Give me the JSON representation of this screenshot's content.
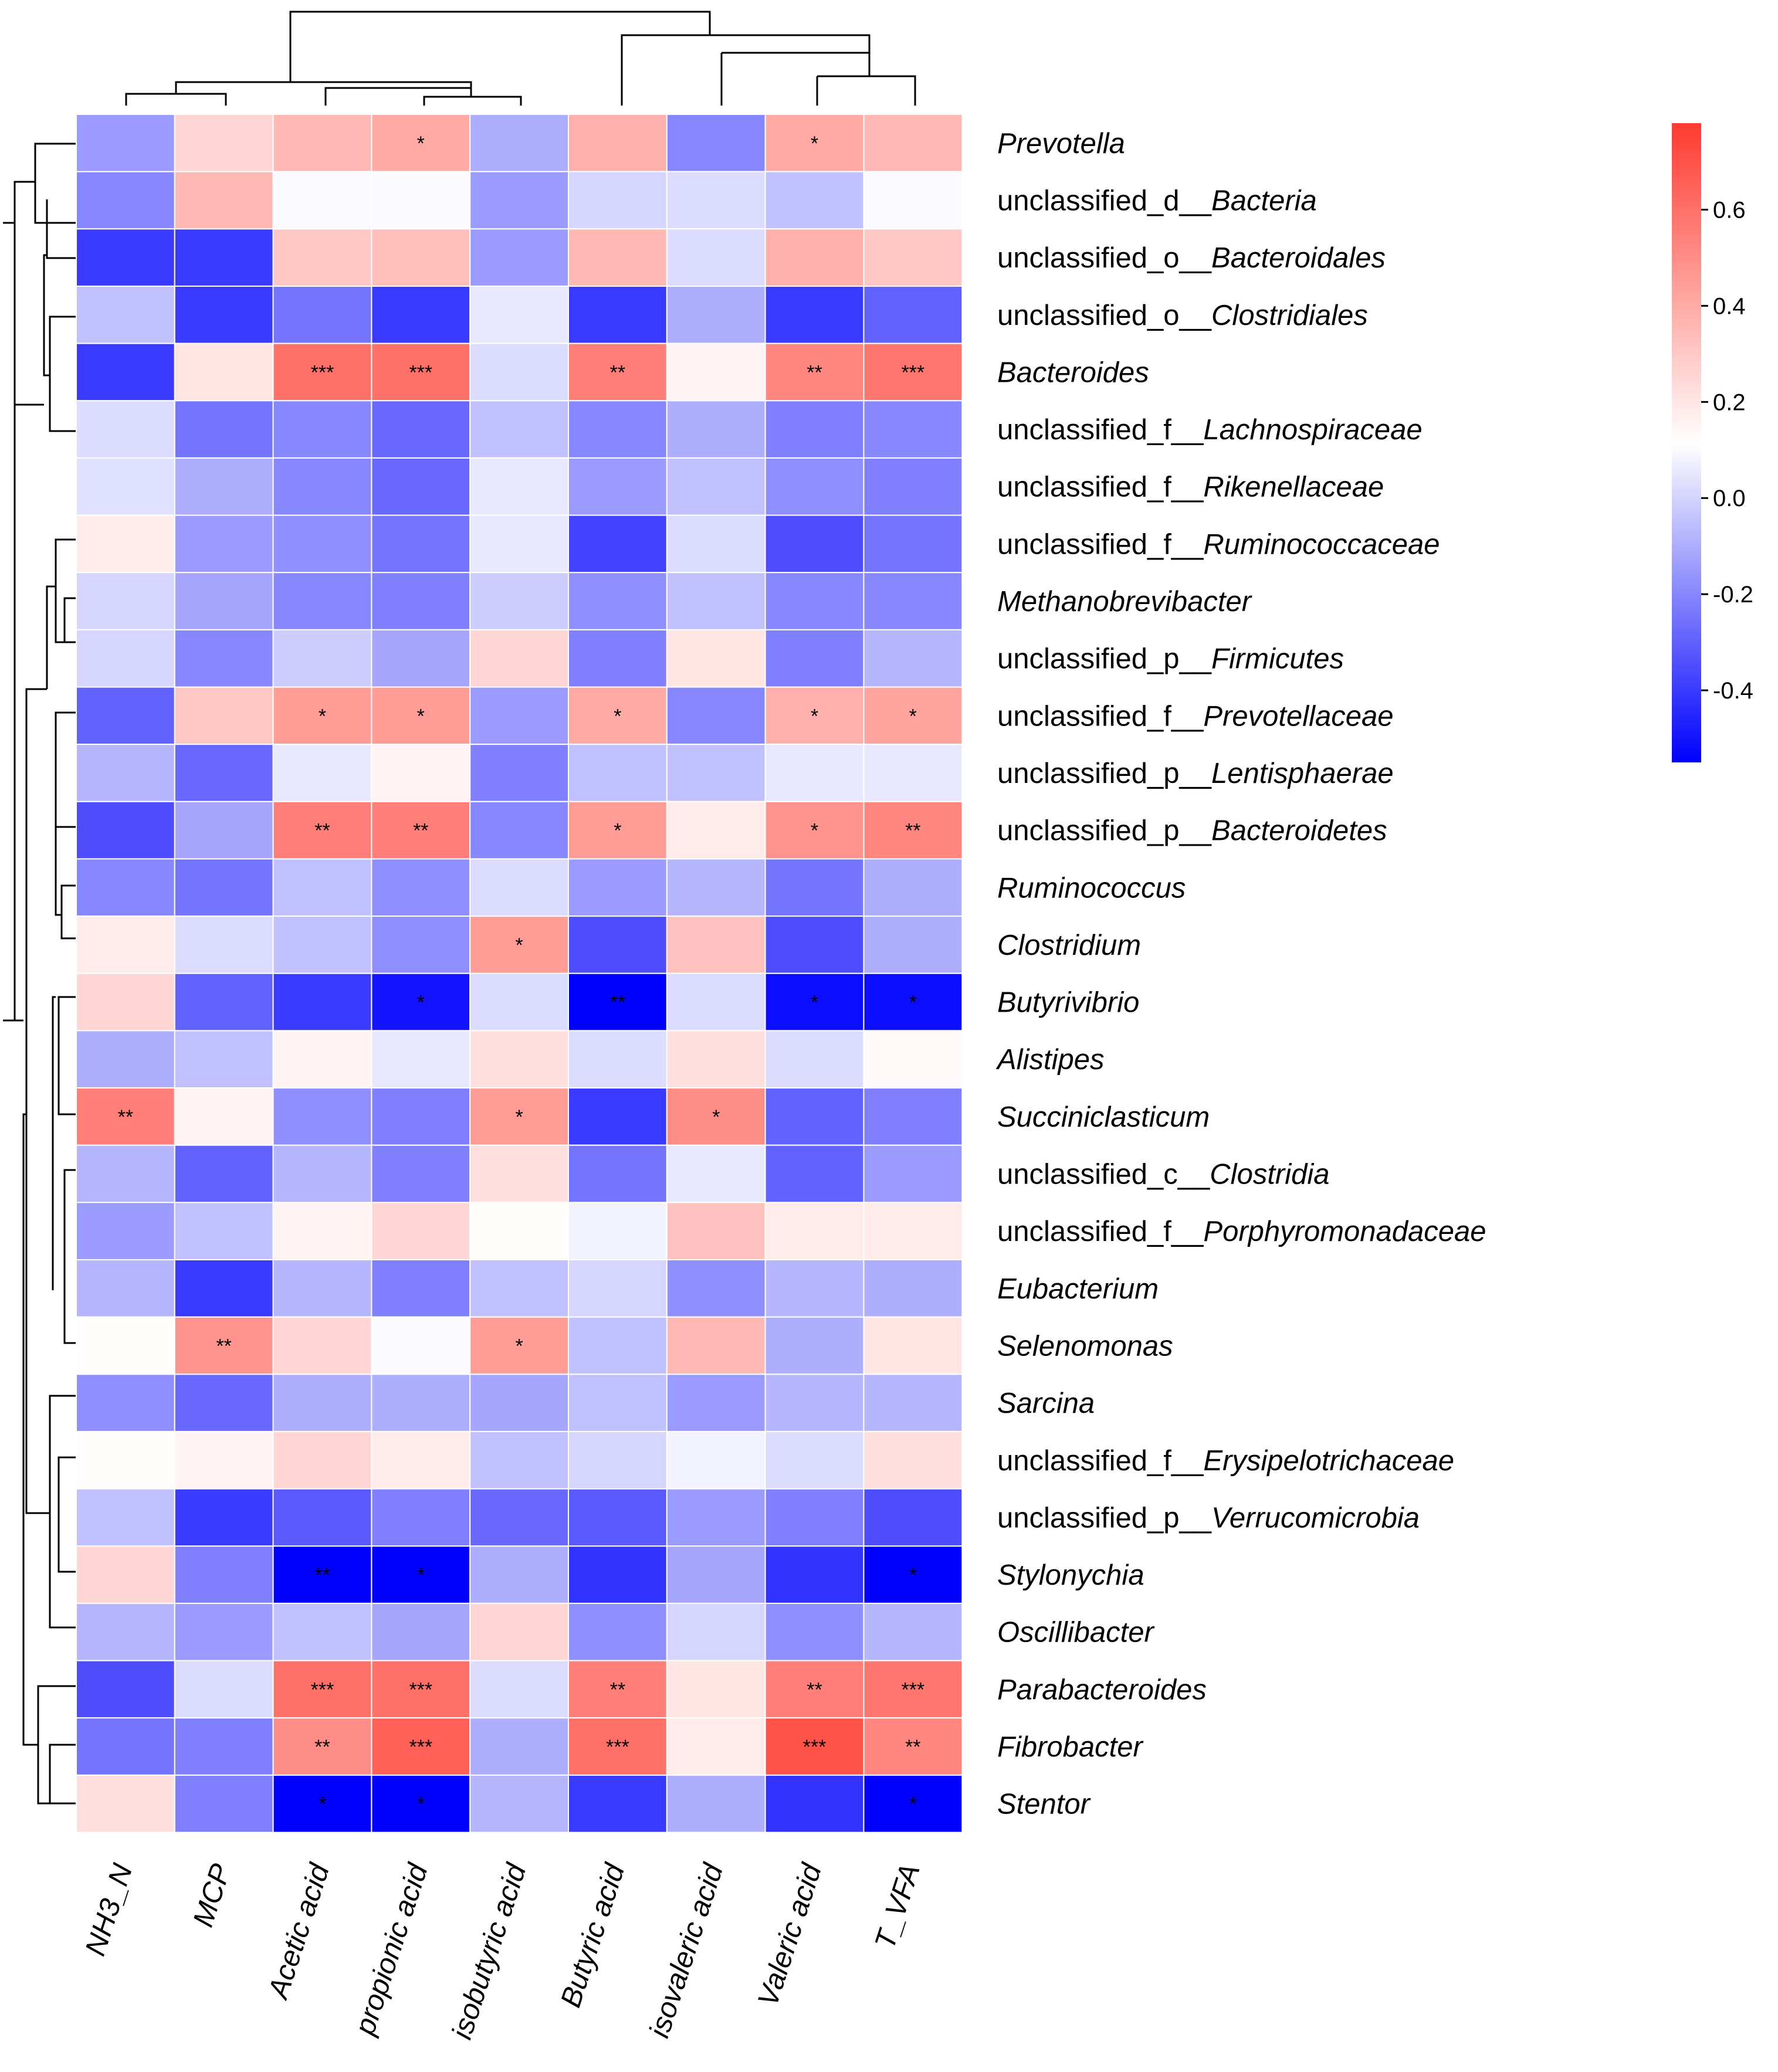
{
  "chart_data": {
    "type": "heatmap",
    "title": "",
    "columns": [
      "NH3_N",
      "MCP",
      "Acetic acid",
      "propionic acid",
      "isobutyric acid",
      "Butyric acid",
      "isovaleric acid",
      "Valeric acid",
      "T_VFA"
    ],
    "rows": [
      {
        "prefix": "",
        "genus": "Prevotella"
      },
      {
        "prefix": "unclassified_d__",
        "genus": "Bacteria"
      },
      {
        "prefix": "unclassified_o__",
        "genus": "Bacteroidales"
      },
      {
        "prefix": "unclassified_o__",
        "genus": "Clostridiales"
      },
      {
        "prefix": "",
        "genus": "Bacteroides"
      },
      {
        "prefix": "unclassified_f__",
        "genus": "Lachnospiraceae"
      },
      {
        "prefix": "unclassified_f__",
        "genus": "Rikenellaceae"
      },
      {
        "prefix": "unclassified_f__",
        "genus": "Ruminococcaceae"
      },
      {
        "prefix": "",
        "genus": "Methanobrevibacter"
      },
      {
        "prefix": "unclassified_p__",
        "genus": "Firmicutes"
      },
      {
        "prefix": "unclassified_f__",
        "genus": "Prevotellaceae"
      },
      {
        "prefix": "unclassified_p__",
        "genus": "Lentisphaerae"
      },
      {
        "prefix": "unclassified_p__",
        "genus": "Bacteroidetes"
      },
      {
        "prefix": "",
        "genus": "Ruminococcus"
      },
      {
        "prefix": "",
        "genus": "Clostridium"
      },
      {
        "prefix": "",
        "genus": "Butyrivibrio"
      },
      {
        "prefix": "",
        "genus": "Alistipes"
      },
      {
        "prefix": "",
        "genus": "Succiniclasticum"
      },
      {
        "prefix": "unclassified_c__",
        "genus": "Clostridia"
      },
      {
        "prefix": "unclassified_f__",
        "genus": "Porphyromonadaceae"
      },
      {
        "prefix": "",
        "genus": "Eubacterium"
      },
      {
        "prefix": "",
        "genus": "Selenomonas"
      },
      {
        "prefix": "",
        "genus": "Sarcina"
      },
      {
        "prefix": "unclassified_f__",
        "genus": "Erysipelotrichaceae"
      },
      {
        "prefix": "unclassified_p__",
        "genus": "Verrucomicrobia"
      },
      {
        "prefix": "",
        "genus": "Stylonychia"
      },
      {
        "prefix": "",
        "genus": "Oscillibacter"
      },
      {
        "prefix": "",
        "genus": "Parabacteroides"
      },
      {
        "prefix": "",
        "genus": "Fibrobacter"
      },
      {
        "prefix": "",
        "genus": "Stentor"
      }
    ],
    "values": [
      [
        -0.15,
        0.25,
        0.35,
        0.4,
        -0.1,
        0.38,
        -0.2,
        0.4,
        0.35
      ],
      [
        -0.2,
        0.35,
        0.1,
        0.1,
        -0.15,
        0.0,
        0.02,
        -0.05,
        0.1
      ],
      [
        -0.4,
        -0.4,
        0.3,
        0.33,
        -0.15,
        0.35,
        0.02,
        0.38,
        0.3
      ],
      [
        -0.05,
        -0.4,
        -0.25,
        -0.4,
        0.05,
        -0.4,
        -0.1,
        -0.4,
        -0.3
      ],
      [
        -0.4,
        0.2,
        0.6,
        0.6,
        0.02,
        0.55,
        0.15,
        0.52,
        0.58
      ],
      [
        0.02,
        -0.25,
        -0.2,
        -0.28,
        -0.05,
        -0.2,
        -0.1,
        -0.22,
        -0.2
      ],
      [
        0.03,
        -0.1,
        -0.2,
        -0.28,
        0.05,
        -0.15,
        -0.05,
        -0.18,
        -0.22
      ],
      [
        0.18,
        -0.15,
        -0.18,
        -0.25,
        0.05,
        -0.38,
        0.02,
        -0.35,
        -0.25
      ],
      [
        0.0,
        -0.12,
        -0.2,
        -0.22,
        -0.02,
        -0.18,
        -0.05,
        -0.2,
        -0.2
      ],
      [
        0.0,
        -0.2,
        -0.02,
        -0.12,
        0.25,
        -0.22,
        0.2,
        -0.22,
        -0.08
      ],
      [
        -0.3,
        0.3,
        0.45,
        0.45,
        -0.15,
        0.4,
        -0.2,
        0.38,
        0.42
      ],
      [
        -0.08,
        -0.28,
        0.05,
        0.15,
        -0.22,
        -0.05,
        -0.05,
        0.05,
        0.05
      ],
      [
        -0.35,
        -0.12,
        0.55,
        0.55,
        -0.2,
        0.45,
        0.18,
        0.48,
        0.52
      ],
      [
        -0.2,
        -0.25,
        -0.05,
        -0.18,
        0.02,
        -0.15,
        -0.08,
        -0.25,
        -0.1
      ],
      [
        0.18,
        0.02,
        -0.05,
        -0.18,
        0.45,
        -0.35,
        0.32,
        -0.35,
        -0.1
      ],
      [
        0.25,
        -0.3,
        -0.4,
        -0.5,
        0.02,
        -0.55,
        0.02,
        -0.52,
        -0.52
      ],
      [
        -0.1,
        -0.05,
        0.15,
        0.05,
        0.22,
        0.02,
        0.22,
        0.02,
        0.13
      ],
      [
        0.55,
        0.15,
        -0.18,
        -0.22,
        0.45,
        -0.4,
        0.5,
        -0.3,
        -0.22
      ],
      [
        -0.08,
        -0.3,
        -0.08,
        -0.22,
        0.22,
        -0.25,
        0.05,
        -0.3,
        -0.15
      ],
      [
        -0.15,
        -0.05,
        0.15,
        0.25,
        0.12,
        0.08,
        0.32,
        0.18,
        0.18
      ],
      [
        -0.08,
        -0.4,
        -0.08,
        -0.22,
        -0.05,
        0.0,
        -0.18,
        -0.08,
        -0.1
      ],
      [
        0.12,
        0.48,
        0.25,
        0.1,
        0.45,
        -0.05,
        0.35,
        -0.1,
        0.2
      ],
      [
        -0.18,
        -0.28,
        -0.1,
        -0.1,
        -0.12,
        -0.05,
        -0.15,
        -0.08,
        -0.08
      ],
      [
        0.12,
        0.15,
        0.25,
        0.18,
        -0.05,
        0.0,
        0.08,
        0.02,
        0.22
      ],
      [
        -0.05,
        -0.4,
        -0.32,
        -0.22,
        -0.28,
        -0.32,
        -0.15,
        -0.22,
        -0.35
      ],
      [
        0.25,
        -0.22,
        -0.55,
        -0.55,
        -0.1,
        -0.42,
        -0.12,
        -0.42,
        -0.55
      ],
      [
        -0.08,
        -0.15,
        -0.05,
        -0.12,
        0.25,
        -0.18,
        0.0,
        -0.18,
        -0.08
      ],
      [
        -0.35,
        0.02,
        0.6,
        0.6,
        0.02,
        0.55,
        0.2,
        0.55,
        0.58
      ],
      [
        -0.25,
        -0.22,
        0.5,
        0.65,
        -0.1,
        0.6,
        0.18,
        0.7,
        0.52
      ],
      [
        0.22,
        -0.22,
        -0.55,
        -0.55,
        -0.08,
        -0.4,
        -0.1,
        -0.42,
        -0.55
      ]
    ],
    "significance": [
      [
        "",
        "",
        "",
        "*",
        "",
        "",
        "",
        "*",
        ""
      ],
      [
        "",
        "",
        "",
        "",
        "",
        "",
        "",
        "",
        ""
      ],
      [
        "",
        "",
        "",
        "",
        "",
        "",
        "",
        "",
        ""
      ],
      [
        "",
        "",
        "",
        "",
        "",
        "",
        "",
        "",
        ""
      ],
      [
        "",
        "",
        "***",
        "***",
        "",
        "**",
        "",
        "**",
        "***"
      ],
      [
        "",
        "",
        "",
        "",
        "",
        "",
        "",
        "",
        ""
      ],
      [
        "",
        "",
        "",
        "",
        "",
        "",
        "",
        "",
        ""
      ],
      [
        "",
        "",
        "",
        "",
        "",
        "",
        "",
        "",
        ""
      ],
      [
        "",
        "",
        "",
        "",
        "",
        "",
        "",
        "",
        ""
      ],
      [
        "",
        "",
        "",
        "",
        "",
        "",
        "",
        "",
        ""
      ],
      [
        "",
        "",
        "*",
        "*",
        "",
        "*",
        "",
        "*",
        "*"
      ],
      [
        "",
        "",
        "",
        "",
        "",
        "",
        "",
        "",
        ""
      ],
      [
        "",
        "",
        "**",
        "**",
        "",
        "*",
        "",
        "*",
        "**"
      ],
      [
        "",
        "",
        "",
        "",
        "",
        "",
        "",
        "",
        ""
      ],
      [
        "",
        "",
        "",
        "",
        "*",
        "",
        "",
        "",
        ""
      ],
      [
        "",
        "",
        "",
        "*",
        "",
        "**",
        "",
        "*",
        "*"
      ],
      [
        "",
        "",
        "",
        "",
        "",
        "",
        "",
        "",
        ""
      ],
      [
        "**",
        "",
        "",
        "",
        "*",
        "",
        "*",
        "",
        ""
      ],
      [
        "",
        "",
        "",
        "",
        "",
        "",
        "",
        "",
        ""
      ],
      [
        "",
        "",
        "",
        "",
        "",
        "",
        "",
        "",
        ""
      ],
      [
        "",
        "",
        "",
        "",
        "",
        "",
        "",
        "",
        ""
      ],
      [
        "",
        "**",
        "",
        "",
        "*",
        "",
        "",
        "",
        ""
      ],
      [
        "",
        "",
        "",
        "",
        "",
        "",
        "",
        "",
        ""
      ],
      [
        "",
        "",
        "",
        "",
        "",
        "",
        "",
        "",
        ""
      ],
      [
        "",
        "",
        "",
        "",
        "",
        "",
        "",
        "",
        ""
      ],
      [
        "",
        "",
        "**",
        "*",
        "",
        "",
        "",
        "",
        "*"
      ],
      [
        "",
        "",
        "",
        "",
        "",
        "",
        "",
        "",
        ""
      ],
      [
        "",
        "",
        "***",
        "***",
        "",
        "**",
        "",
        "**",
        "***"
      ],
      [
        "",
        "",
        "**",
        "***",
        "",
        "***",
        "",
        "***",
        "**"
      ],
      [
        "",
        "",
        "*",
        "*",
        "",
        "",
        "",
        "",
        "*"
      ]
    ],
    "colorbar": {
      "min": -0.55,
      "max": 0.78,
      "ticks": [
        -0.4,
        -0.2,
        0.0,
        0.2,
        0.4,
        0.6
      ],
      "tick_labels": [
        "-0.4",
        "-0.2",
        "0.0",
        "0.2",
        "0.4",
        "0.6"
      ],
      "low_color": "#0000FF",
      "mid_color": "#FFFFFF",
      "high_color": "#FF3B30",
      "mid_value": 0.11
    }
  }
}
